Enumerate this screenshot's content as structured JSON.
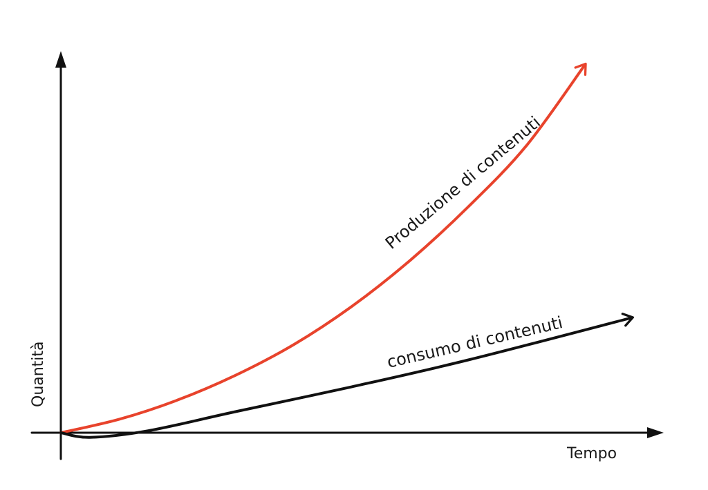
{
  "chart_data": {
    "type": "line",
    "title": "",
    "xlabel": "Tempo",
    "ylabel": "Quantità",
    "xlim": [
      0,
      10
    ],
    "ylim": [
      0,
      10
    ],
    "grid": false,
    "legend": "none",
    "series": [
      {
        "name": "Produzione di contenuti",
        "color": "#e8432c",
        "trend": "exponential",
        "x": [
          0,
          1,
          2,
          3,
          4,
          5,
          6,
          7,
          8,
          9
        ],
        "y": [
          0,
          0.35,
          0.85,
          1.5,
          2.3,
          3.3,
          4.5,
          5.9,
          7.5,
          9.6
        ]
      },
      {
        "name": "consumo di contenuti",
        "color": "#111111",
        "trend": "linear",
        "x": [
          0,
          0.5,
          1.5,
          3,
          5,
          7,
          9.8
        ],
        "y": [
          0,
          -0.12,
          0.05,
          0.55,
          1.2,
          1.9,
          3.0
        ]
      }
    ]
  }
}
